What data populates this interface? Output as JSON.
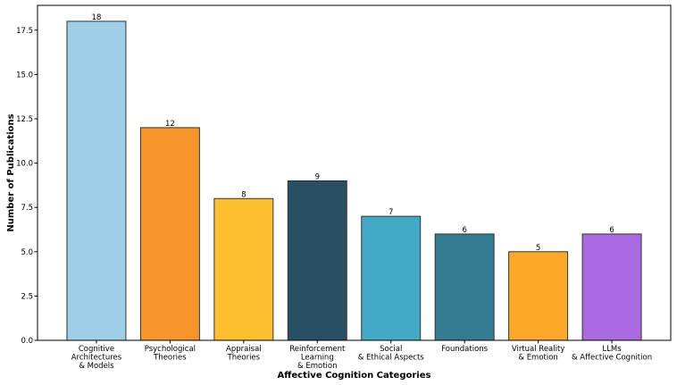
{
  "chart_data": {
    "type": "bar",
    "title": "",
    "xlabel": "Affective Cognition Categories",
    "ylabel": "Number of Publications",
    "ylim": [
      0,
      18.9
    ],
    "yticks": [
      0.0,
      2.5,
      5.0,
      7.5,
      10.0,
      12.5,
      15.0,
      17.5
    ],
    "ytick_labels": [
      "0.0",
      "2.5",
      "5.0",
      "7.5",
      "10.0",
      "12.5",
      "15.0",
      "17.5"
    ],
    "grid": false,
    "categories": [
      [
        "Cognitive",
        "Architectures",
        "& Models"
      ],
      [
        "Psychological",
        "Theories"
      ],
      [
        "Appraisal",
        "Theories"
      ],
      [
        "Reinforcement",
        "Learning",
        "& Emotion"
      ],
      [
        "Social",
        "& Ethical Aspects"
      ],
      [
        "Foundations"
      ],
      [
        "Virtual Reality",
        "& Emotion"
      ],
      [
        "LLMs",
        "& Affective Cognition"
      ]
    ],
    "values": [
      18,
      12,
      8,
      9,
      7,
      6,
      5,
      6
    ],
    "colors": [
      "#a0d0e8",
      "#f7952a",
      "#fdbf2d",
      "#284f63",
      "#42a9c7",
      "#347c91",
      "#fca92a",
      "#a96ae2"
    ]
  }
}
